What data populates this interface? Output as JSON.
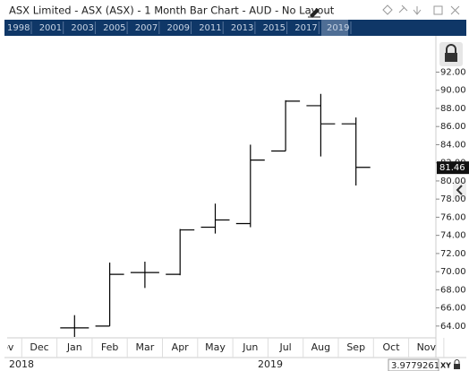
{
  "window": {
    "title": "ASX Limited - ASX (ASX) - 1 Month Bar Chart - AUD - No Layout"
  },
  "navigator": {
    "years": [
      "1998",
      "2001",
      "2003",
      "2005",
      "2007",
      "2009",
      "2011",
      "2013",
      "2015",
      "2017",
      "2019"
    ]
  },
  "chart_data": {
    "type": "ohlc",
    "color": "#000000",
    "categories": [
      "Nov",
      "Dec",
      "Jan",
      "Feb",
      "Mar",
      "Apr",
      "May",
      "Jun",
      "Jul",
      "Aug",
      "Sep",
      "Oct",
      "Nov"
    ],
    "open": [
      null,
      null,
      63.8,
      64.0,
      69.9,
      69.7,
      74.9,
      75.3,
      83.3,
      88.3,
      86.3,
      null,
      null
    ],
    "high": [
      null,
      null,
      65.2,
      71.0,
      71.1,
      74.7,
      77.5,
      84.0,
      88.9,
      89.6,
      87.0,
      null,
      null
    ],
    "low": [
      null,
      null,
      62.8,
      64.0,
      68.2,
      69.6,
      74.2,
      74.9,
      83.3,
      82.7,
      79.5,
      null,
      null
    ],
    "close": [
      null,
      null,
      63.8,
      69.7,
      69.9,
      74.6,
      75.7,
      82.3,
      88.8,
      86.3,
      81.5,
      null,
      null
    ],
    "ylim": [
      62.7,
      96.0
    ],
    "yticks": [
      {
        "value": 64,
        "label": "64.00"
      },
      {
        "value": 66,
        "label": "66.00"
      },
      {
        "value": 68,
        "label": "68.00"
      },
      {
        "value": 70,
        "label": "70.00"
      },
      {
        "value": 72,
        "label": "72.00"
      },
      {
        "value": 74,
        "label": "74.00"
      },
      {
        "value": 76,
        "label": "76.00"
      },
      {
        "value": 78,
        "label": "78.00"
      },
      {
        "value": 80,
        "label": "80.00"
      },
      {
        "value": 82,
        "label": "82.00"
      },
      {
        "value": 84,
        "label": "84.00"
      },
      {
        "value": 86,
        "label": "86.00"
      },
      {
        "value": 88,
        "label": "88.00"
      },
      {
        "value": 90,
        "label": "90.00"
      },
      {
        "value": 92,
        "label": "92.00"
      }
    ],
    "last_price": 81.46,
    "period_labels": [
      "2018",
      "2019"
    ]
  },
  "status": {
    "scale": "3.9779261",
    "mode": "XY"
  }
}
